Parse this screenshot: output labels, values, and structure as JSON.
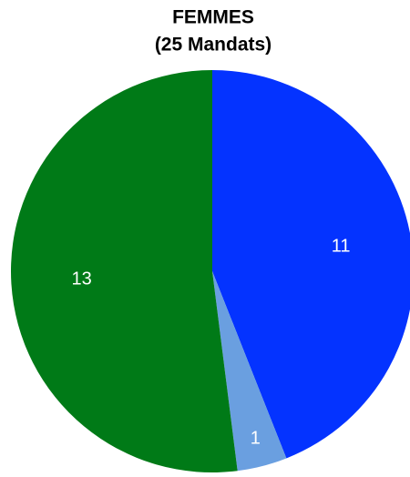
{
  "chart_data": {
    "type": "pie",
    "title": "FEMMES",
    "subtitle": "(25 Mandats)",
    "categories": [
      null,
      null,
      null
    ],
    "values": [
      11,
      1,
      13
    ],
    "colors": [
      "#0433ff",
      "#6a9fe0",
      "#007a17"
    ]
  }
}
